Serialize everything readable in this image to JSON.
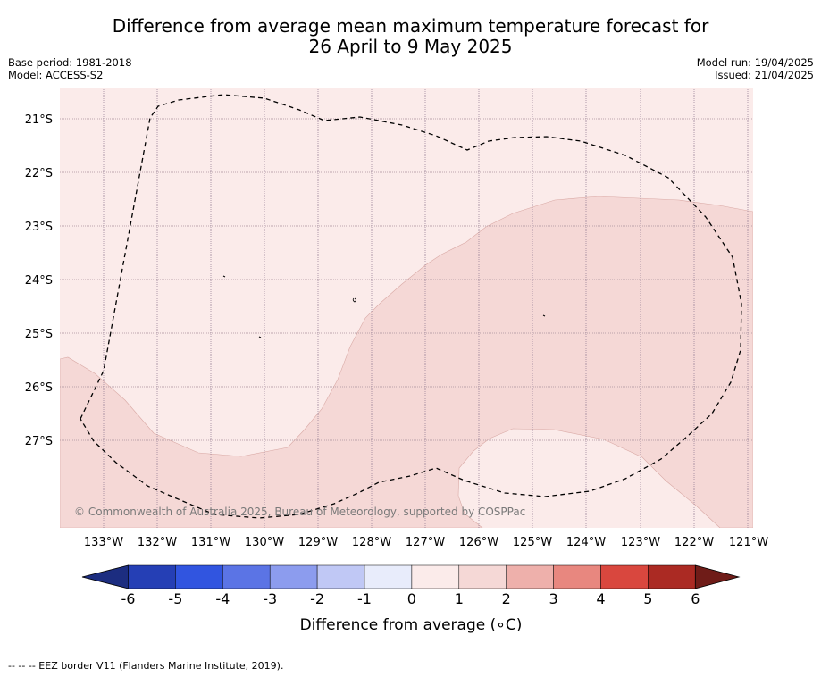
{
  "title": {
    "line1": "Difference from average mean maximum temperature forecast for",
    "line2": "26 April to 9 May 2025"
  },
  "meta_left": {
    "base_period": "Base period: 1981-2018",
    "model": "Model: ACCESS-S2"
  },
  "meta_right": {
    "model_run": "Model run: 19/04/2025",
    "issued": "Issued: 21/04/2025"
  },
  "map": {
    "lat_labels": [
      "21°S",
      "22°S",
      "23°S",
      "24°S",
      "25°S",
      "26°S",
      "27°S"
    ],
    "lon_labels": [
      "133°W",
      "132°W",
      "131°W",
      "130°W",
      "129°W",
      "128°W",
      "127°W",
      "126°W",
      "125°W",
      "124°W",
      "123°W",
      "122°W",
      "121°W"
    ],
    "copyright": "© Commonwealth of Australia 2025, Bureau of Meteorology, supported by COSPPac",
    "fill_colors": {
      "zero_to_one": "#fbebea",
      "one_to_two": "#f5d8d6"
    }
  },
  "colorbar": {
    "title": "Difference from average (∘C)",
    "tick_labels": [
      "-6",
      "-5",
      "-4",
      "-3",
      "-2",
      "-1",
      "0",
      "1",
      "2",
      "3",
      "4",
      "5",
      "6"
    ],
    "colors": [
      "#1c2d80",
      "#253fb5",
      "#3155e0",
      "#5b74e5",
      "#8c9cee",
      "#c0c8f5",
      "#e8ecfb",
      "#fbebea",
      "#f5d8d6",
      "#eeb0ab",
      "#e8877f",
      "#d9473e",
      "#ab2a23",
      "#6f1c18"
    ]
  },
  "footnote": "-- -- -- EEZ border V11 (Flanders Marine Institute, 2019)."
}
